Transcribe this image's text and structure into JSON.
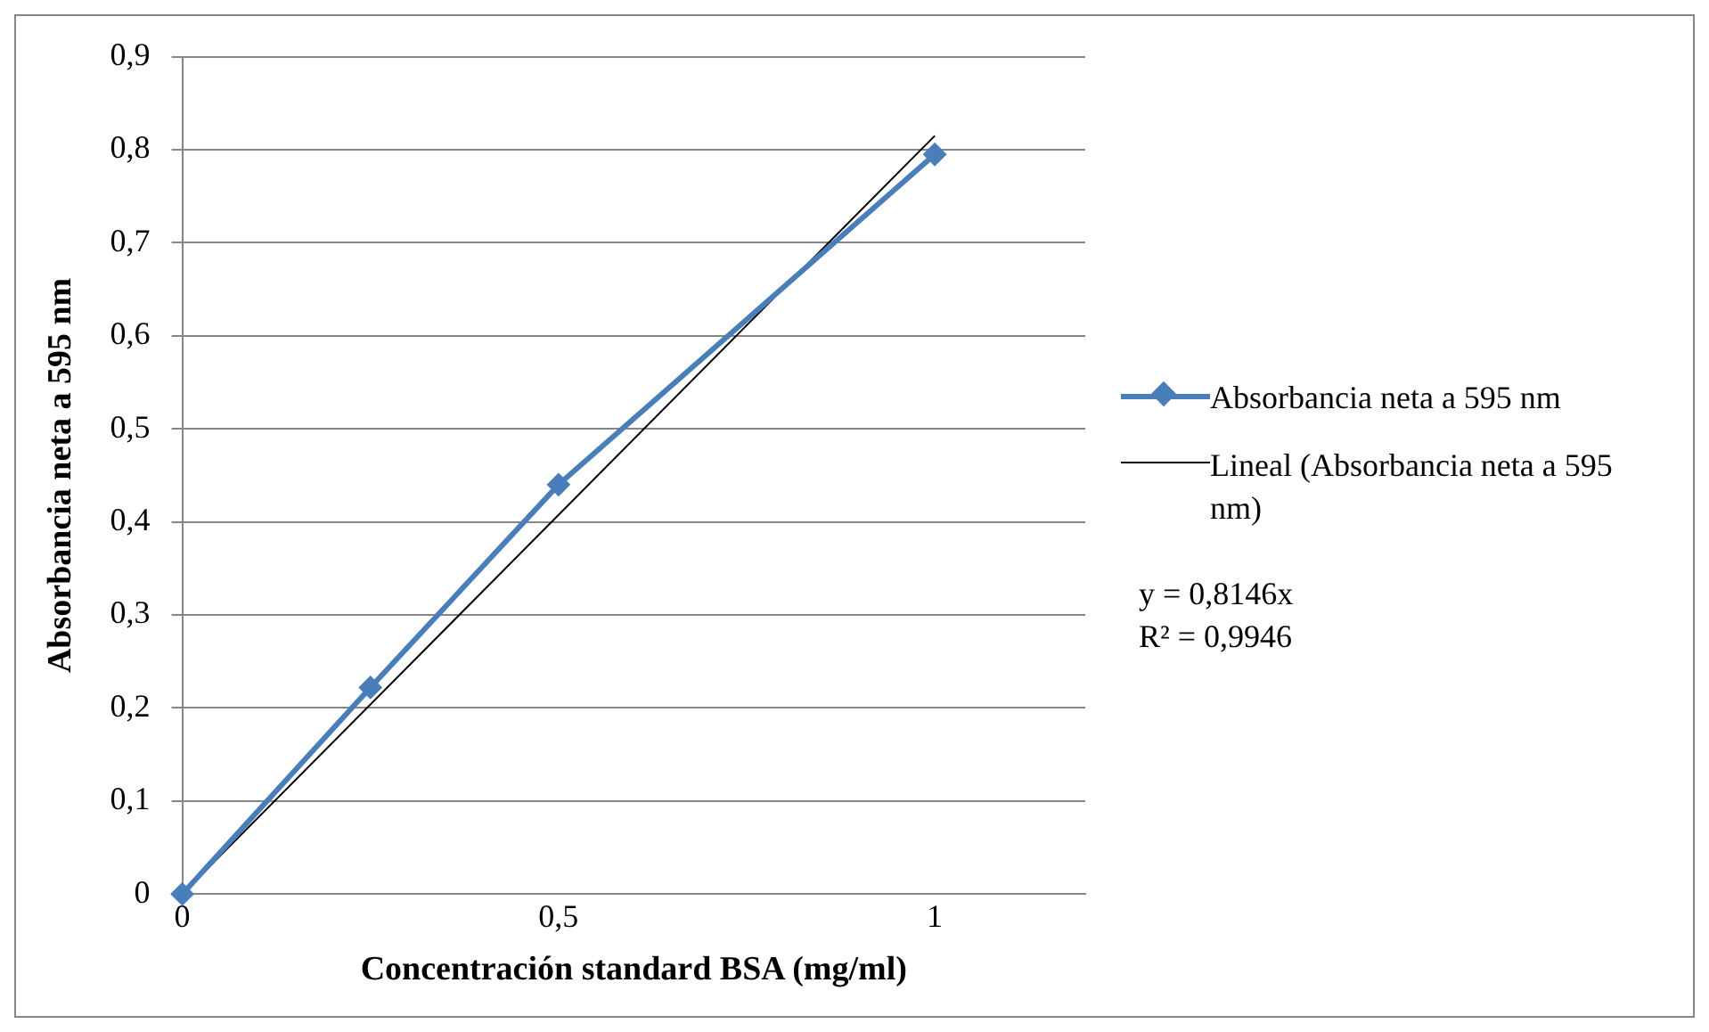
{
  "chart_data": {
    "type": "line",
    "xlabel": "Concentración standard BSA (mg/ml)",
    "ylabel": "Absorbancia neta a 595 nm",
    "series": [
      {
        "name": "Absorbancia neta a 595 nm",
        "color": "#4a7ebb",
        "x": [
          0,
          0.25,
          0.5,
          1
        ],
        "values": [
          0,
          0.222,
          0.44,
          0.795
        ],
        "marker": "diamond",
        "line_style": "solid"
      },
      {
        "name": "Lineal (Absorbancia neta a 595 nm)",
        "color": "#000000",
        "x": [
          0,
          1
        ],
        "values": [
          0,
          0.815
        ],
        "marker": "none",
        "line_style": "solid"
      }
    ],
    "xlim": [
      0,
      1.2
    ],
    "xticks": [
      0,
      {
        "value": 0.5,
        "label": "0,5"
      },
      1
    ],
    "ylim": [
      0,
      0.9
    ],
    "yticks": [
      0,
      {
        "value": 0.1,
        "label": "0,1"
      },
      {
        "value": 0.2,
        "label": "0,2"
      },
      {
        "value": 0.3,
        "label": "0,3"
      },
      {
        "value": 0.4,
        "label": "0,4"
      },
      {
        "value": 0.5,
        "label": "0,5"
      },
      {
        "value": 0.6,
        "label": "0,6"
      },
      {
        "value": 0.7,
        "label": "0,7"
      },
      {
        "value": 0.8,
        "label": "0,8"
      },
      {
        "value": 0.9,
        "label": "0,9"
      }
    ],
    "grid": "y",
    "legend": "right",
    "annotations": [
      "y = 0,8146x",
      "R² = 0,9946"
    ]
  }
}
